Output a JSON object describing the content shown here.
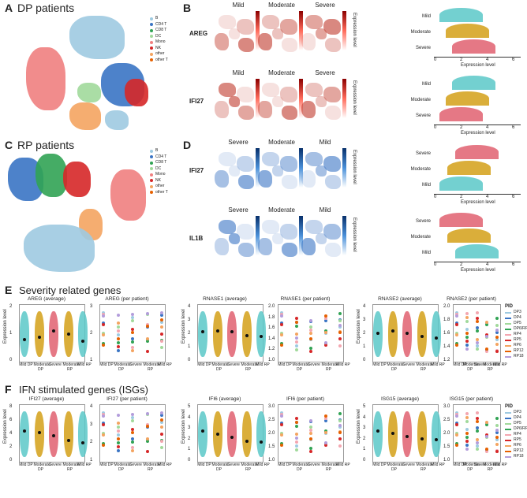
{
  "panel_a": {
    "letter": "A",
    "title": "DP patients"
  },
  "panel_c": {
    "letter": "C",
    "title": "RP patients"
  },
  "panel_b": {
    "letter": "B"
  },
  "panel_d": {
    "letter": "D"
  },
  "cell_types": [
    {
      "name": "B",
      "color": "#9ecae1"
    },
    {
      "name": "CD4 T",
      "color": "#3a74c4"
    },
    {
      "name": "CD8 T",
      "color": "#31a354"
    },
    {
      "name": "DC",
      "color": "#a1d99b"
    },
    {
      "name": "Mono",
      "color": "#f08080"
    },
    {
      "name": "NK",
      "color": "#d62728"
    },
    {
      "name": "other",
      "color": "#f4a460"
    },
    {
      "name": "other T",
      "color": "#e66101"
    }
  ],
  "panel_b_cols": [
    "Mild",
    "Moderate",
    "Severe"
  ],
  "panel_d_cols": [
    "Severe",
    "Moderate",
    "Mild"
  ],
  "genes_b": [
    "AREG",
    "IFI27"
  ],
  "genes_d": [
    "IFI27",
    "IL1B"
  ],
  "expr_label": "Expression level",
  "ridge_b1": [
    "Mild",
    "Moderate",
    "Severe"
  ],
  "ridge_b2": [
    "Mild",
    "Moderate",
    "Severe"
  ],
  "ridge_d1": [
    "Severe",
    "Moderate",
    "Mild"
  ],
  "ridge_d2": [
    "Severe",
    "Moderate",
    "Mild"
  ],
  "ridge_ticks": [
    "0",
    "2",
    "4",
    "6"
  ],
  "cbar_b_ticks": [
    "7",
    "6",
    "5",
    "4",
    "3",
    "2",
    "1",
    "0"
  ],
  "cbar_d_ticks": [
    "6",
    "5",
    "4",
    "3",
    "2",
    "1",
    "0"
  ],
  "panel_e": {
    "letter": "E",
    "title": "Severity related genes"
  },
  "panel_f": {
    "letter": "F",
    "title": "IFN stimulated genes (ISGs)"
  },
  "e_plots": [
    "AREG (average)",
    "AREG (per patient)",
    "RNASE1 (average)",
    "RNASE1 (per patient)",
    "RNASE2 (average)",
    "RNASE2 (per patient)"
  ],
  "f_plots": [
    "IFI27 (average)",
    "IFI27 (per patient)",
    "IFI6 (average)",
    "IFI6 (per patient)",
    "ISG15 (average)",
    "ISG15 (per patient)"
  ],
  "x_cats": [
    "Mild DP",
    "Moderate DP",
    "Severe",
    "Moderate RP",
    "Mild RP"
  ],
  "pid_title": "PID",
  "pids": [
    {
      "name": "DP3",
      "color": "#9ecae1"
    },
    {
      "name": "DP4",
      "color": "#3a74c4"
    },
    {
      "name": "DP5",
      "color": "#a1d99b"
    },
    {
      "name": "DP6/RP3",
      "color": "#31a354"
    },
    {
      "name": "RP4",
      "color": "#f4a6b0"
    },
    {
      "name": "RP5",
      "color": "#d62728"
    },
    {
      "name": "RP6",
      "color": "#f4a460"
    },
    {
      "name": "RP12",
      "color": "#e66101"
    },
    {
      "name": "RP18",
      "color": "#b39ddb"
    }
  ],
  "e_yticks": {
    "areg": [
      "2",
      "1",
      "0"
    ],
    "areg_pp": [
      "3",
      "2",
      "1"
    ],
    "rnase1": [
      "4",
      "3",
      "2",
      "1",
      "0"
    ],
    "rnase1_pp": [
      "2.0",
      "1.8",
      "1.6",
      "1.4",
      "1.2",
      "1.0"
    ],
    "rnase2": [
      "4",
      "3",
      "2",
      "1",
      "0"
    ],
    "rnase2_pp": [
      "2.0",
      "1.8",
      "1.6",
      "1.4",
      "1.2"
    ]
  },
  "f_yticks": {
    "ifi27": [
      "8",
      "6",
      "4",
      "2",
      "0"
    ],
    "ifi27_pp": [
      "4",
      "3",
      "2",
      "1"
    ],
    "ifi6": [
      "5",
      "4",
      "3",
      "2",
      "1",
      "0"
    ],
    "ifi6_pp": [
      "3.0",
      "2.5",
      "2.0",
      "1.5",
      "1.0"
    ],
    "isg15": [
      "5",
      "4",
      "3",
      "2",
      "1",
      "0"
    ],
    "isg15_pp": [
      "3.0",
      "2.5",
      "2.0",
      "1.5",
      "1.0"
    ]
  },
  "chart_data": [
    {
      "type": "line",
      "title": "AREG (average)",
      "categories": [
        "Mild DP",
        "Moderate DP",
        "Severe",
        "Moderate RP",
        "Mild RP"
      ],
      "values": [
        1.1,
        1.25,
        1.55,
        1.4,
        1.05
      ]
    },
    {
      "type": "line",
      "title": "RNASE1 (average)",
      "categories": [
        "Mild DP",
        "Moderate DP",
        "Severe",
        "Moderate RP",
        "Mild RP"
      ],
      "values": [
        1.55,
        1.6,
        1.55,
        1.35,
        1.3
      ]
    },
    {
      "type": "line",
      "title": "RNASE2 (average)",
      "categories": [
        "Mild DP",
        "Moderate DP",
        "Severe",
        "Moderate RP",
        "Mild RP"
      ],
      "values": [
        1.6,
        1.75,
        1.6,
        1.45,
        1.35
      ]
    },
    {
      "type": "line",
      "title": "IFI27 (average)",
      "categories": [
        "Mild DP",
        "Moderate DP",
        "Severe",
        "Moderate RP",
        "Mild RP"
      ],
      "values": [
        4.0,
        3.8,
        3.4,
        2.8,
        2.5
      ]
    },
    {
      "type": "line",
      "title": "IFI6 (average)",
      "categories": [
        "Mild DP",
        "Moderate DP",
        "Severe",
        "Moderate RP",
        "Mild RP"
      ],
      "values": [
        2.8,
        2.5,
        2.2,
        1.9,
        1.8
      ]
    },
    {
      "type": "line",
      "title": "ISG15 (average)",
      "categories": [
        "Mild DP",
        "Moderate DP",
        "Severe",
        "Moderate RP",
        "Mild RP"
      ],
      "values": [
        2.4,
        2.2,
        2.0,
        1.8,
        1.7
      ]
    }
  ]
}
